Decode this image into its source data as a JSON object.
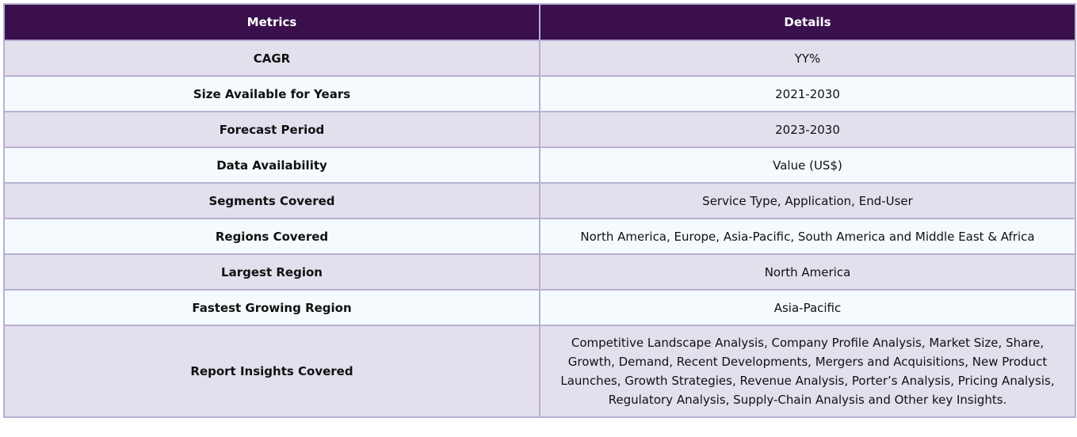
{
  "table": {
    "headers": [
      "Metrics",
      "Details"
    ],
    "rows": [
      {
        "metric": "CAGR",
        "detail": "YY%"
      },
      {
        "metric": "Size Available for Years",
        "detail": "2021-2030"
      },
      {
        "metric": "Forecast Period",
        "detail": "2023-2030"
      },
      {
        "metric": "Data Availability",
        "detail": "Value (US$)"
      },
      {
        "metric": "Segments Covered",
        "detail": "Service Type, Application, End-User"
      },
      {
        "metric": "Regions Covered",
        "detail": "North America, Europe, Asia-Pacific, South America and Middle East & Africa"
      },
      {
        "metric": "Largest Region",
        "detail": "North America"
      },
      {
        "metric": "Fastest Growing Region",
        "detail": "Asia-Pacific"
      },
      {
        "metric": "Report Insights Covered",
        "detail": "Competitive Landscape Analysis, Company Profile Analysis, Market Size, Share, Growth, Demand, Recent Developments, Mergers and Acquisitions, New Product Launches, Growth Strategies, Revenue Analysis, Porter’s Analysis, Pricing Analysis, Regulatory Analysis, Supply-Chain Analysis and Other key Insights."
      }
    ]
  }
}
